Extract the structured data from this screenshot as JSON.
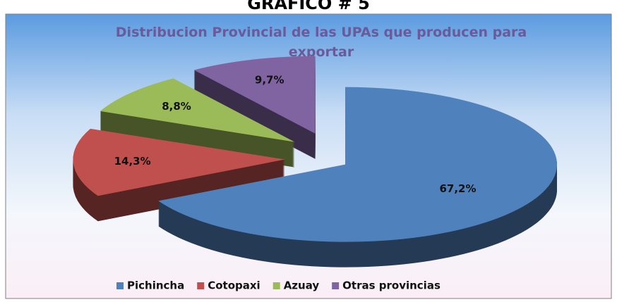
{
  "header": "GRAFICO # 5",
  "chart_data": {
    "type": "pie",
    "title": "Distribucion Provincial de las UPAs que producen para exportar",
    "categories": [
      "Pichincha",
      "Cotopaxi",
      "Azuay",
      "Otras provincias"
    ],
    "values": [
      67.2,
      14.3,
      8.8,
      9.7
    ],
    "value_labels": [
      "67,2%",
      "14,3%",
      "8,8%",
      "9,7%"
    ],
    "colors": [
      "#4f81bd",
      "#c0504d",
      "#9bbb59",
      "#8064a2"
    ],
    "legend": "bottom"
  }
}
